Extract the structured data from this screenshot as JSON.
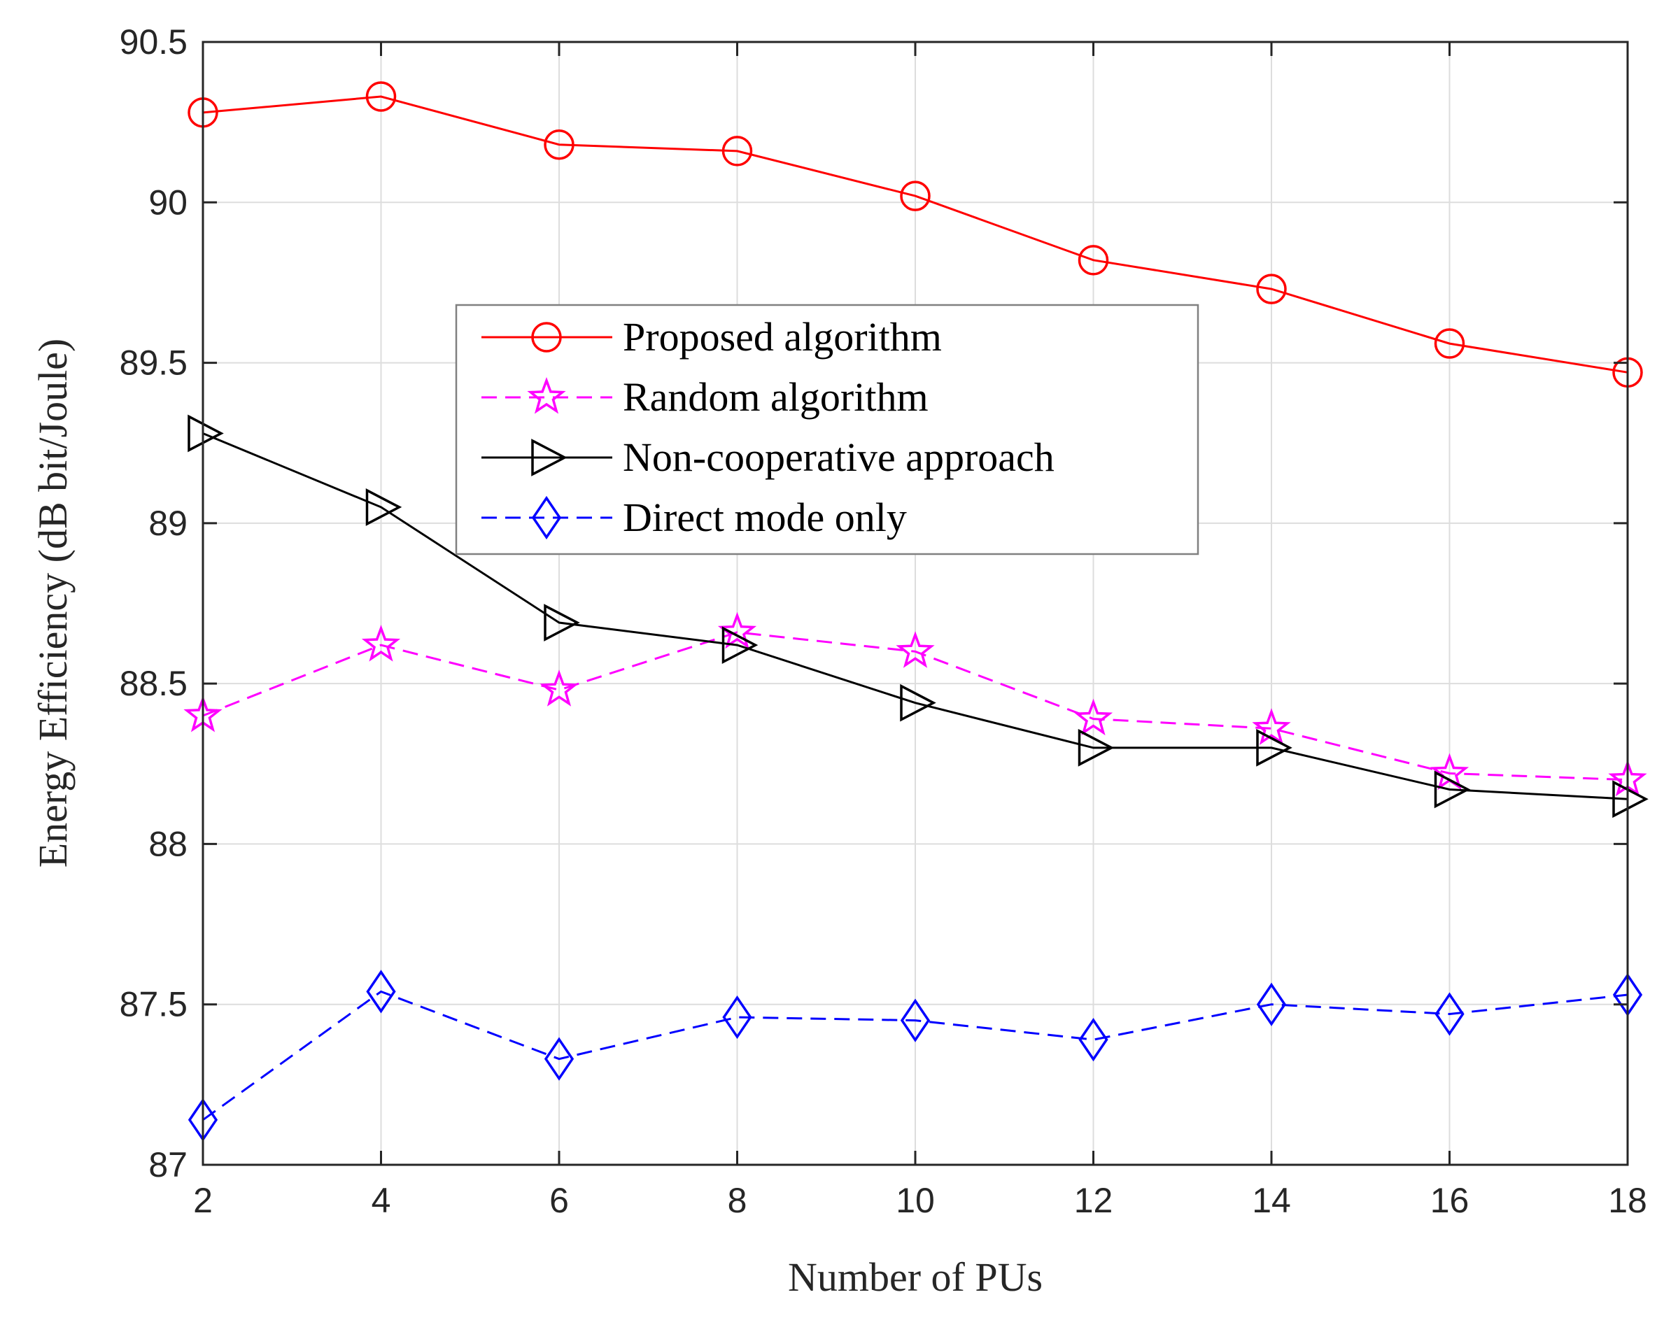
{
  "chart_data": {
    "type": "line",
    "title": "",
    "xlabel": "Number of PUs",
    "ylabel": "Energy Efficiency (dB bit/Joule)",
    "xlim": [
      2,
      18
    ],
    "ylim": [
      87,
      90.5
    ],
    "xticks": [
      2,
      4,
      6,
      8,
      10,
      12,
      14,
      16,
      18
    ],
    "yticks": [
      87,
      87.5,
      88,
      88.5,
      89,
      89.5,
      90,
      90.5
    ],
    "xtick_labels": [
      "2",
      "4",
      "6",
      "8",
      "10",
      "12",
      "14",
      "16",
      "18"
    ],
    "ytick_labels": [
      "87",
      "87.5",
      "88",
      "88.5",
      "89",
      "89.5",
      "90",
      "90.5"
    ],
    "grid": true,
    "legend_position": "center",
    "x": [
      2,
      4,
      6,
      8,
      10,
      12,
      14,
      16,
      18
    ],
    "series": [
      {
        "name": "Proposed algorithm",
        "color": "#ff0000",
        "line_style": "solid",
        "marker": "circle",
        "values": [
          90.28,
          90.33,
          90.18,
          90.16,
          90.02,
          89.82,
          89.73,
          89.56,
          89.47
        ]
      },
      {
        "name": "Random algorithm",
        "color": "#ff00ff",
        "line_style": "dashed",
        "marker": "star",
        "values": [
          88.4,
          88.62,
          88.48,
          88.66,
          88.6,
          88.39,
          88.36,
          88.22,
          88.2
        ]
      },
      {
        "name": "Non-cooperative approach",
        "color": "#000000",
        "line_style": "solid",
        "marker": "triangle-right",
        "values": [
          89.28,
          89.05,
          88.69,
          88.62,
          88.44,
          88.3,
          88.3,
          88.17,
          88.14
        ]
      },
      {
        "name": "Direct mode only",
        "color": "#0000ff",
        "line_style": "dashed",
        "marker": "diamond",
        "values": [
          87.14,
          87.54,
          87.33,
          87.46,
          87.45,
          87.39,
          87.5,
          87.47,
          87.53
        ]
      }
    ]
  },
  "colors": {
    "axis": "#262626",
    "grid": "#dddddd",
    "legend_border": "#808080"
  }
}
